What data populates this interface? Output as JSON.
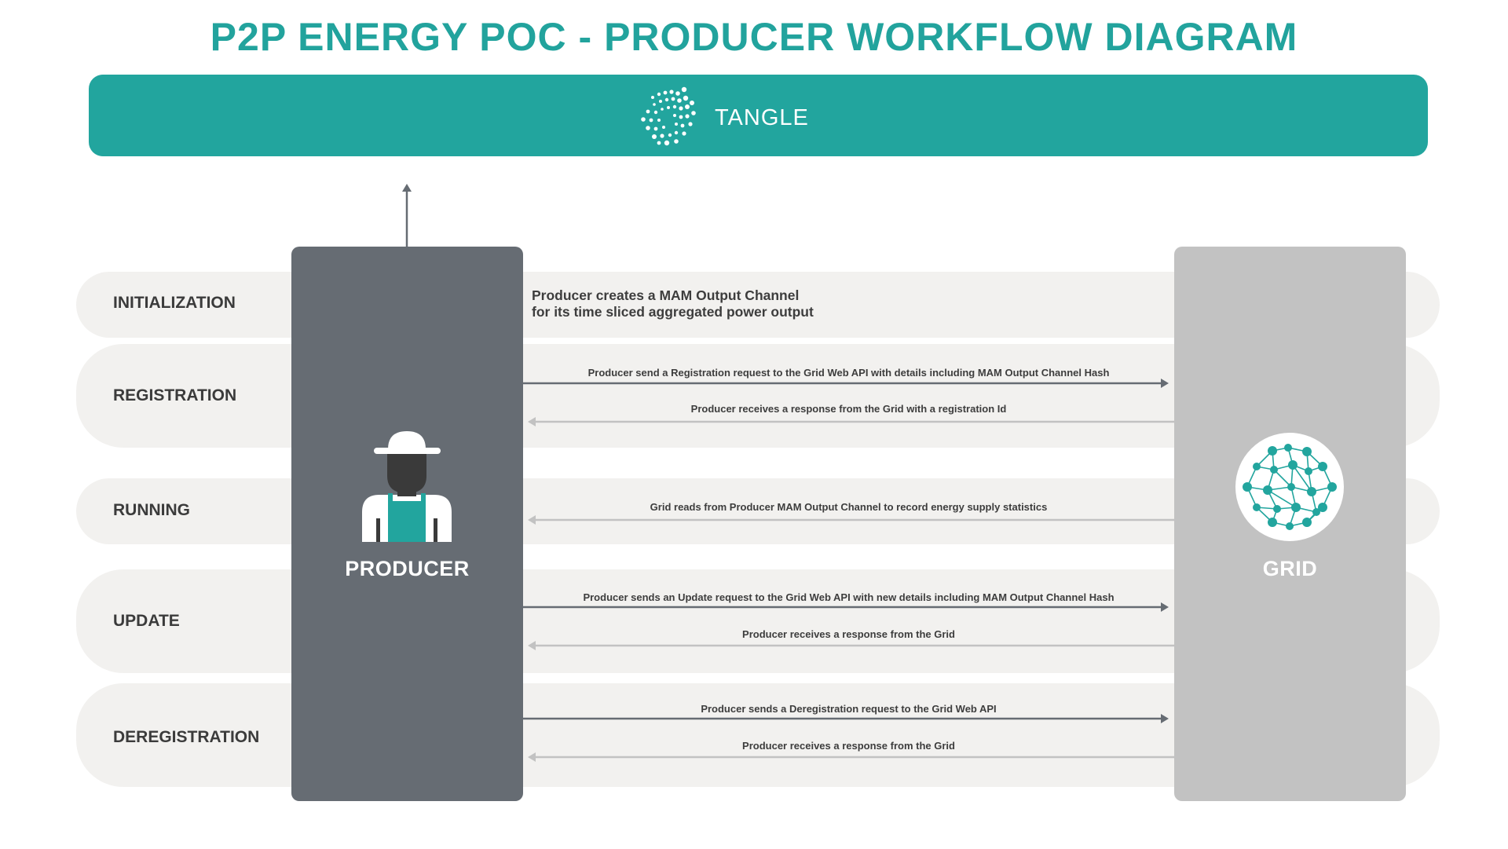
{
  "title": "P2P ENERGY POC - PRODUCER WORKFLOW DIAGRAM",
  "tangle": {
    "label": "TANGLE",
    "icon": "iota-logo-icon"
  },
  "lanes": [
    {
      "label": "INITIALIZATION"
    },
    {
      "label": "REGISTRATION"
    },
    {
      "label": "RUNNING"
    },
    {
      "label": "UPDATE"
    },
    {
      "label": "DEREGISTRATION"
    }
  ],
  "actors": {
    "producer": {
      "label": "PRODUCER",
      "icon": "farmer-icon"
    },
    "grid": {
      "label": "GRID",
      "icon": "network-globe-icon"
    }
  },
  "initialization": {
    "line1": "Producer creates a MAM Output Channel",
    "line2": "for its time sliced aggregated power output"
  },
  "messages": [
    {
      "text": "Producer send a Registration request to the Grid Web API with details including MAM Output Channel Hash",
      "direction": "to-grid"
    },
    {
      "text": "Producer receives a response from the Grid with a registration Id",
      "direction": "to-producer"
    },
    {
      "text": "Grid reads from Producer MAM Output Channel to record energy supply statistics",
      "direction": "to-producer"
    },
    {
      "text": "Producer sends an Update request to the Grid Web API with new details including MAM Output Channel Hash",
      "direction": "to-grid"
    },
    {
      "text": "Producer receives a response from the Grid",
      "direction": "to-producer"
    },
    {
      "text": "Producer sends a Deregistration request to the Grid Web API",
      "direction": "to-grid"
    },
    {
      "text": "Producer receives a response from the Grid",
      "direction": "to-producer"
    }
  ],
  "colors": {
    "accent": "#22a59e",
    "producer_box": "#666c73",
    "grid_box": "#c2c2c2",
    "lane": "#f2f1ef",
    "arrow_dark": "#666c73",
    "arrow_light": "#c2c2c2"
  }
}
